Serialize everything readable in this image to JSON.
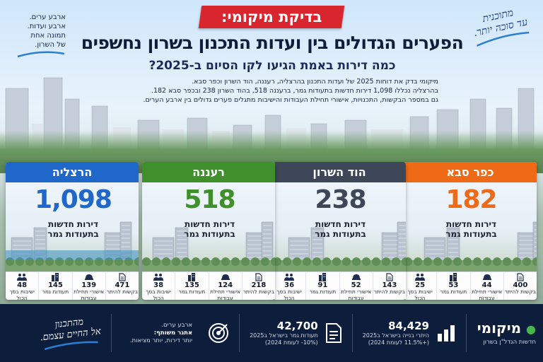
{
  "banner": "בדיקת מיקומי:",
  "headline": "הפערים הגדולים בין ועדות התכנון בשרון נחשפים",
  "subheadline": "כמה דירות באמת הגיעו לקו הסיום ב-2025?",
  "intro": [
    "מיקומי בדק את דוחות 2025 של ועדות התכנון בהרצליה, רעננה, הוד השרון וכפר סבא.",
    "בהרצליה נכללו 1,098 דירות חדשות בתעודות גמר, ברעננה 518, בהוד השרון 238 ובכפר סבא 182.",
    "גם במספר הבקשות, התכנויות, אישורי תחילת העבודות והישיבות מתגלים פערים גדולים בין ארבע הערים."
  ],
  "note_left": [
    "ארבע ערים.",
    "ארבע ועדות.",
    "תמונה אחת",
    "של השרון."
  ],
  "note_right": [
    "מתוכנית",
    "עד סוכה יותר."
  ],
  "cards": [
    {
      "city": "הרצליה",
      "number": "1,098",
      "label1": "דירות חדשות",
      "label2": "בתעודות גמר",
      "color": "#1f67c9",
      "stats": [
        {
          "icon": "document-icon",
          "value": "471",
          "label": "בקשות להיתר"
        },
        {
          "icon": "helmet-icon",
          "value": "139",
          "label": "אישורי תחילת עבודות"
        },
        {
          "icon": "building-icon",
          "value": "145",
          "label": "תעודות גמר"
        },
        {
          "icon": "people-icon",
          "value": "48",
          "label": "ישיבות בסך הכול"
        }
      ]
    },
    {
      "city": "רעננה",
      "number": "518",
      "label1": "דירות חדשות",
      "label2": "בתעודות גמר",
      "color": "#3f8f2c",
      "stats": [
        {
          "icon": "document-icon",
          "value": "218",
          "label": "בקשות להיתר"
        },
        {
          "icon": "helmet-icon",
          "value": "124",
          "label": "אישורי תחילת עבודות"
        },
        {
          "icon": "building-icon",
          "value": "135",
          "label": "תעודות גמר"
        },
        {
          "icon": "people-icon",
          "value": "38",
          "label": "ישיבות בסך הכול"
        }
      ]
    },
    {
      "city": "הוד השרון",
      "number": "238",
      "label1": "דירות חדשות",
      "label2": "בתעודות גמר",
      "color": "#3d4758",
      "stats": [
        {
          "icon": "document-icon",
          "value": "143",
          "label": "בקשות להיתר"
        },
        {
          "icon": "helmet-icon",
          "value": "52",
          "label": "אישורי תחילת עבודות"
        },
        {
          "icon": "building-icon",
          "value": "91",
          "label": "תעודות גמר"
        },
        {
          "icon": "people-icon",
          "value": "36",
          "label": "ישיבות בסך הכול"
        }
      ]
    },
    {
      "city": "כפר סבא",
      "number": "182",
      "label1": "דירות חדשות",
      "label2": "בתעודות גמר",
      "color": "#ee6a16",
      "stats": [
        {
          "icon": "document-icon",
          "value": "400",
          "label": "בקשות להיתר"
        },
        {
          "icon": "helmet-icon",
          "value": "44",
          "label": "אישורי תחילת עבודות"
        },
        {
          "icon": "building-icon",
          "value": "53",
          "label": "תעודות גמר"
        },
        {
          "icon": "people-icon",
          "value": "25",
          "label": "ישיבות בסך הכול"
        }
      ]
    }
  ],
  "footer": {
    "brand": "מיקומי",
    "tagline": "חדשות הגדל\"ן בשרון",
    "stat1": {
      "icon": "bar-chart-icon",
      "value": "84,429",
      "desc1": "היתרי בנייה בישראל ב2025",
      "desc2": "(+11.5% לעומת 2024)"
    },
    "stat2": {
      "icon": "document-icon",
      "value": "42,700",
      "desc1": "תעודות גמר בישראל ב2025",
      "desc2": "(10%- לעומת 2024)"
    },
    "message": {
      "icon": "target-icon",
      "line1": "ארבע ערים.",
      "line2": "אתגר משותף:",
      "line3": "יותר דירות, יותר מציאות."
    },
    "slogan": [
      "מהתכנון",
      "אל החיים עצמם."
    ]
  }
}
